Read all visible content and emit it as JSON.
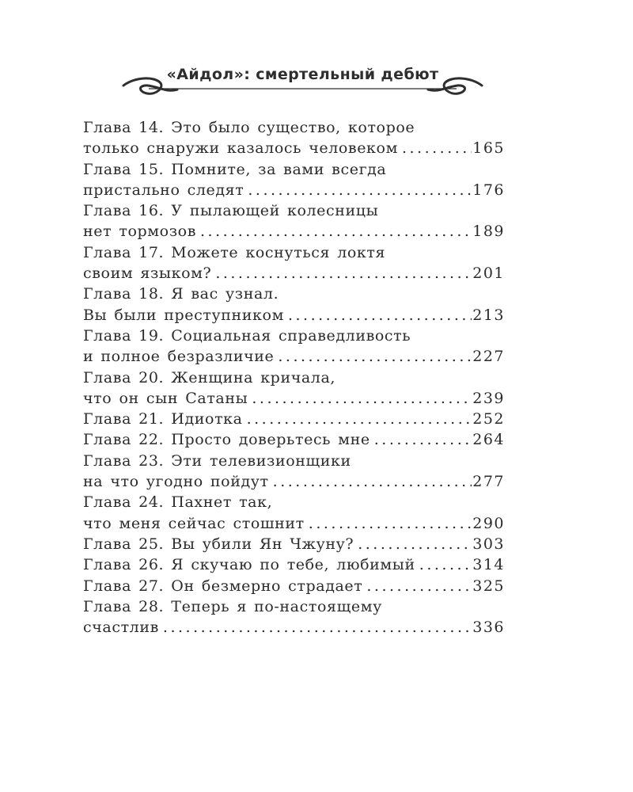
{
  "colors": {
    "ink": "#2b2b2b",
    "paper": "#ffffff"
  },
  "header": {
    "title": "«Айдол»: смертельный дебют"
  },
  "toc": {
    "entries": [
      {
        "lines": [
          "Глава 14. Это было существо, которое",
          "только снаружи казалось человеком"
        ],
        "page": "165"
      },
      {
        "lines": [
          "Глава 15. Помните, за вами всегда",
          "пристально следят"
        ],
        "page": "176"
      },
      {
        "lines": [
          "Глава 16. У пылающей колесницы",
          "нет тормозов"
        ],
        "page": "189"
      },
      {
        "lines": [
          "Глава 17. Можете коснуться локтя",
          "своим языком?"
        ],
        "page": "201"
      },
      {
        "lines": [
          "Глава 18. Я вас узнал.",
          "Вы были преступником"
        ],
        "page": "213"
      },
      {
        "lines": [
          "Глава 19. Социальная справедливость",
          "и полное безразличие"
        ],
        "page": "227"
      },
      {
        "lines": [
          "Глава 20. Женщина кричала,",
          "что он сын Сатаны"
        ],
        "page": "239"
      },
      {
        "lines": [
          "Глава 21. Идиотка"
        ],
        "page": "252"
      },
      {
        "lines": [
          "Глава 22. Просто доверьтесь мне"
        ],
        "page": "264"
      },
      {
        "lines": [
          "Глава 23. Эти телевизионщики",
          "на что угодно пойдут"
        ],
        "page": "277"
      },
      {
        "lines": [
          "Глава 24. Пахнет так,",
          "что меня сейчас стошнит"
        ],
        "page": "290"
      },
      {
        "lines": [
          "Глава 25. Вы убили Ян Чжуну?"
        ],
        "page": "303"
      },
      {
        "lines": [
          "Глава 26. Я скучаю по тебе, любимый"
        ],
        "page": "314"
      },
      {
        "lines": [
          "Глава 27. Он безмерно страдает"
        ],
        "page": "325"
      },
      {
        "lines": [
          "Глава 28. Теперь я по-настоящему",
          "счастлив"
        ],
        "page": "336"
      }
    ]
  }
}
